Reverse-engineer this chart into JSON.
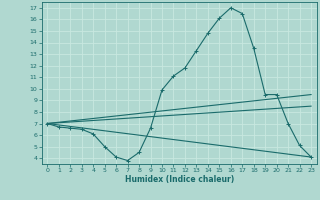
{
  "xlabel": "Humidex (Indice chaleur)",
  "xlim": [
    -0.5,
    23.5
  ],
  "ylim": [
    3.5,
    17.5
  ],
  "xticks": [
    0,
    1,
    2,
    3,
    4,
    5,
    6,
    7,
    8,
    9,
    10,
    11,
    12,
    13,
    14,
    15,
    16,
    17,
    18,
    19,
    20,
    21,
    22,
    23
  ],
  "yticks": [
    4,
    5,
    6,
    7,
    8,
    9,
    10,
    11,
    12,
    13,
    14,
    15,
    16,
    17
  ],
  "background_color": "#b0d8d0",
  "grid_color": "#c8e8e0",
  "line_color": "#1a6b6b",
  "line1_x": [
    0,
    1,
    2,
    3,
    4,
    5,
    6,
    7,
    8,
    9,
    10,
    11,
    12,
    13,
    14,
    15,
    16,
    17,
    18,
    19,
    20,
    21,
    22,
    23
  ],
  "line1_y": [
    7.0,
    6.7,
    6.6,
    6.5,
    6.1,
    5.0,
    4.1,
    3.8,
    4.5,
    6.6,
    9.9,
    11.1,
    11.8,
    13.3,
    14.8,
    16.1,
    17.0,
    16.5,
    13.5,
    9.5,
    9.5,
    7.0,
    5.1,
    4.1
  ],
  "line3_x": [
    0,
    23
  ],
  "line3_y": [
    7.0,
    8.5
  ],
  "line4_x": [
    0,
    23
  ],
  "line4_y": [
    7.0,
    4.1
  ],
  "line5_x": [
    0,
    23
  ],
  "line5_y": [
    7.0,
    9.5
  ]
}
